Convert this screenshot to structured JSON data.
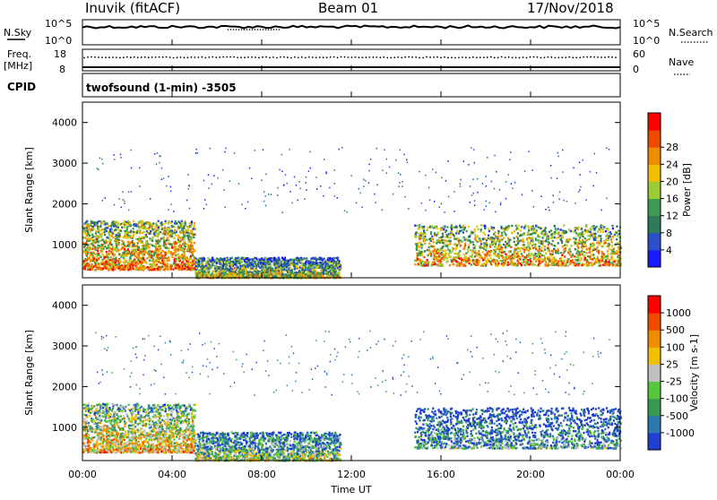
{
  "header": {
    "station": "Inuvik (fitACF)",
    "beam": "Beam 01",
    "date": "17/Nov/2018"
  },
  "top_panels": {
    "nsky_label": "N.Sky",
    "nsky_ticks": [
      "10^5",
      "10^0"
    ],
    "nsearch_label": "N.Search",
    "nsearch_ticks": [
      "10^5",
      "10^0"
    ],
    "freq_label": "Freq.",
    "freq_unit": "[MHz]",
    "freq_ticks": [
      "18",
      "8"
    ],
    "nave_label": "Nave",
    "nave_ticks": [
      "60",
      "0"
    ],
    "cpid_label": "CPID",
    "cpid_text": "twofsound (1-min) -3505"
  },
  "time_axis": {
    "label": "Time UT",
    "ticks": [
      "00:00",
      "04:00",
      "08:00",
      "12:00",
      "16:00",
      "20:00",
      "00:00"
    ]
  },
  "chart_data": [
    {
      "type": "heatmap",
      "quantity": "Power",
      "ylabel": "Slant Range [km]",
      "yticks": [
        1000,
        2000,
        3000,
        4000
      ],
      "ylim": [
        180,
        4500
      ],
      "xlim_hours": [
        0,
        24
      ],
      "colorbar_label": "Power [dB]",
      "colorbar_ticks": [
        "4",
        "8",
        "12",
        "16",
        "20",
        "24",
        "28"
      ],
      "colors": [
        "#1a1aff",
        "#2a4fc8",
        "#2f7a5a",
        "#3c9a52",
        "#9ccc34",
        "#f0c000",
        "#f08c00",
        "#f04a00",
        "#ff0000"
      ],
      "regions": [
        {
          "t0": 0.0,
          "t1": 5.0,
          "r0": 400,
          "r1": 1600,
          "level": 0.75
        },
        {
          "t0": 5.0,
          "t1": 11.5,
          "r0": 200,
          "r1": 700,
          "level": 0.55
        },
        {
          "t0": 14.8,
          "t1": 24.0,
          "r0": 500,
          "r1": 1500,
          "level": 0.7
        }
      ]
    },
    {
      "type": "heatmap",
      "quantity": "Velocity",
      "ylabel": "Slant Range [km]",
      "yticks": [
        1000,
        2000,
        3000,
        4000
      ],
      "ylim": [
        180,
        4500
      ],
      "xlim_hours": [
        0,
        24
      ],
      "colorbar_label": "Velocity [m s-1]",
      "colorbar_ticks": [
        "1000",
        "500",
        "100",
        "25",
        "-25",
        "-100",
        "-500",
        "-1000"
      ],
      "colors": [
        "#1f3fd0",
        "#2a7ab0",
        "#3a9a52",
        "#55c83c",
        "#c0c0c0",
        "#f0c000",
        "#f08c00",
        "#f04a00",
        "#ff0000"
      ],
      "regions": [
        {
          "t0": 0.0,
          "t1": 5.0,
          "r0": 400,
          "r1": 1600,
          "level": 0.65
        },
        {
          "t0": 5.0,
          "t1": 11.5,
          "r0": 200,
          "r1": 900,
          "level": 0.45
        },
        {
          "t0": 14.8,
          "t1": 24.0,
          "r0": 500,
          "r1": 1500,
          "level": 0.3
        }
      ]
    }
  ]
}
